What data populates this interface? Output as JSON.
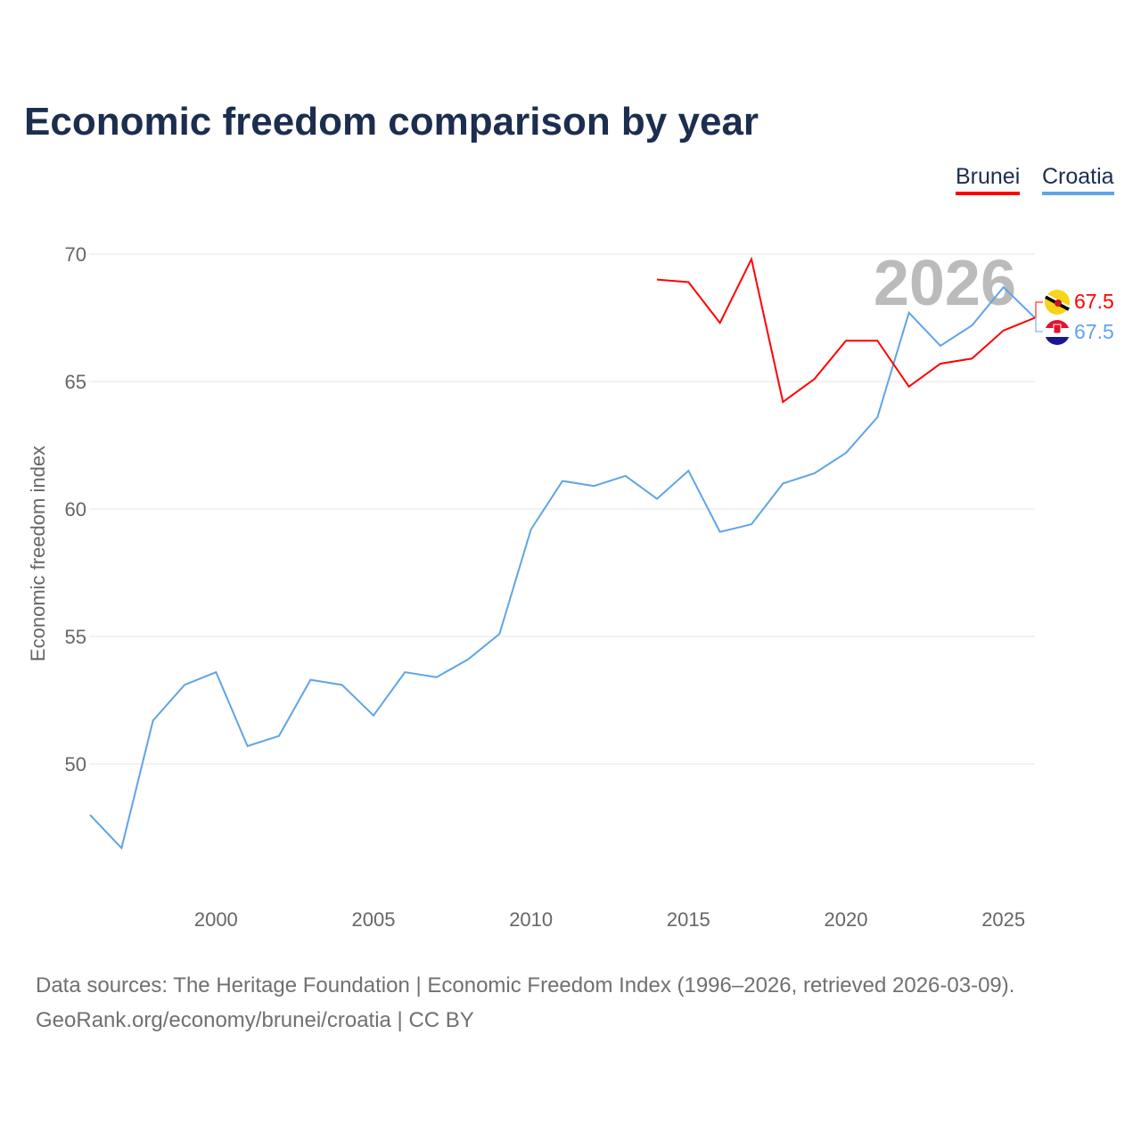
{
  "chart_data": {
    "type": "line",
    "title": "Economic freedom comparison by year",
    "xlabel": "",
    "ylabel": "Economic freedom index",
    "xlim": [
      1996,
      2026
    ],
    "ylim": [
      45.3,
      71.5
    ],
    "yticks": [
      50,
      55,
      60,
      65,
      70
    ],
    "xticks": [
      2000,
      2005,
      2010,
      2015,
      2020,
      2025
    ],
    "grid": true,
    "legend_position": "top-right",
    "year_watermark": "2026",
    "series": [
      {
        "name": "Brunei",
        "color": "#ff0000",
        "end_label": "67.5",
        "x": [
          2014,
          2015,
          2016,
          2017,
          2018,
          2019,
          2020,
          2021,
          2022,
          2023,
          2024,
          2025,
          2026
        ],
        "values": [
          69.0,
          68.9,
          67.3,
          69.8,
          64.2,
          65.1,
          66.6,
          66.6,
          64.8,
          65.7,
          65.9,
          67.0,
          67.5
        ]
      },
      {
        "name": "Croatia",
        "color": "#5fa4e8",
        "end_label": "67.5",
        "x": [
          1996,
          1997,
          1998,
          1999,
          2000,
          2001,
          2002,
          2003,
          2004,
          2005,
          2006,
          2007,
          2008,
          2009,
          2010,
          2011,
          2012,
          2013,
          2014,
          2015,
          2016,
          2017,
          2018,
          2019,
          2020,
          2021,
          2022,
          2023,
          2024,
          2025,
          2026
        ],
        "values": [
          48.0,
          46.7,
          51.7,
          53.1,
          53.6,
          50.7,
          51.1,
          53.3,
          53.1,
          51.9,
          53.6,
          53.4,
          54.1,
          55.1,
          59.2,
          61.1,
          60.9,
          61.3,
          60.4,
          61.5,
          59.1,
          59.4,
          61.0,
          61.4,
          62.2,
          63.6,
          67.7,
          66.4,
          67.2,
          68.7,
          67.5
        ]
      }
    ]
  },
  "source": {
    "line1": "Data sources: The Heritage Foundation | Economic Freedom Index (1996–2026, retrieved 2026-03-09).",
    "line2": "GeoRank.org/economy/brunei/croatia | CC BY"
  }
}
